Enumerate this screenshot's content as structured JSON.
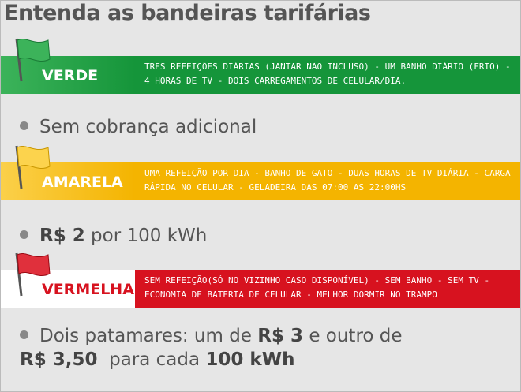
{
  "header": {
    "title": "Entenda as bandeiras tarifárias"
  },
  "flags": [
    {
      "name": "VERDE",
      "description": "TRES REFEIÇÕES DIÁRIAS (JANTAR NÃO INCLUSO) - UM BANHO DIÁRIO (FRIO) - 4 HORAS DE TV - DOIS CARREGAMENTOS DE CELULAR/DIA.",
      "charge": [
        "Sem cobrança adicional"
      ]
    },
    {
      "name": "AMARELA",
      "description": "UMA REFEIÇÃO POR DIA - BANHO DE GATO - DUAS HORAS DE TV DIÁRIA - CARGA RÁPIDA NO CELULAR - GELADEIRA DAS 07:00 AS 22:00HS",
      "charge": [
        "R$ 2",
        " por 100 kWh"
      ]
    },
    {
      "name": "VERMELHA",
      "description": "SEM REFEIÇÃO(SÓ NO VIZINHO CASO DISPONÍVEL) - SEM BANHO - SEM TV - ECONOMIA DE BATERIA DE CELULAR - MELHOR DORMIR NO TRAMPO",
      "charge": [
        "Dois patamares: um de ",
        "R$ 3",
        " e outro de",
        "R$ 3,50",
        "  para cada ",
        "100 kWh"
      ]
    }
  ]
}
